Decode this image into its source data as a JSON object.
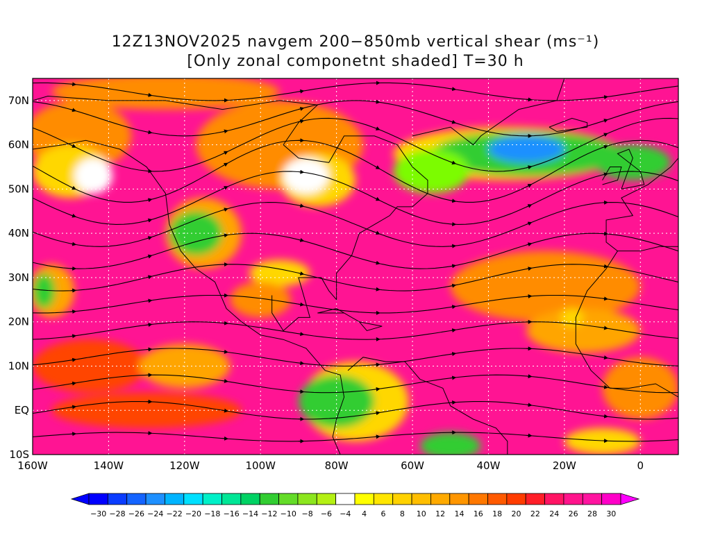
{
  "title": {
    "line1": "12Z13NOV2025 navgem 200−850mb vertical shear (ms⁻¹)",
    "line2": "[Only zonal componetnt shaded] T=30 h"
  },
  "map": {
    "lon_range": [
      -160,
      10
    ],
    "lat_range": [
      -10,
      75
    ],
    "lat_labels": [
      {
        "lat": 70,
        "text": "70N"
      },
      {
        "lat": 60,
        "text": "60N"
      },
      {
        "lat": 50,
        "text": "50N"
      },
      {
        "lat": 40,
        "text": "40N"
      },
      {
        "lat": 30,
        "text": "30N"
      },
      {
        "lat": 20,
        "text": "20N"
      },
      {
        "lat": 10,
        "text": "10N"
      },
      {
        "lat": 0,
        "text": "EQ"
      },
      {
        "lat": -10,
        "text": "10S"
      }
    ],
    "lon_labels": [
      {
        "lon": -160,
        "text": "160W"
      },
      {
        "lon": -140,
        "text": "140W"
      },
      {
        "lon": -120,
        "text": "120W"
      },
      {
        "lon": -100,
        "text": "100W"
      },
      {
        "lon": -80,
        "text": "80W"
      },
      {
        "lon": -60,
        "text": "60W"
      },
      {
        "lon": -40,
        "text": "40W"
      },
      {
        "lon": -20,
        "text": "20W"
      },
      {
        "lon": 0,
        "text": "0"
      }
    ],
    "grid_style": "dotted white",
    "grid_lats": [
      70,
      60,
      50,
      40,
      30,
      20,
      10,
      0
    ],
    "grid_lons": [
      -140,
      -120,
      -100,
      -80,
      -60,
      -40,
      -20,
      0
    ],
    "base_color": "#ff1493",
    "patches": [
      {
        "lon": -148,
        "lat": 62,
        "rx": 14,
        "ry": 8,
        "color": "#ff8c00"
      },
      {
        "lon": -150,
        "lat": 54,
        "rx": 10,
        "ry": 6,
        "color": "#ffd700"
      },
      {
        "lon": -144,
        "lat": 53,
        "rx": 5,
        "ry": 4,
        "color": "#ffffff"
      },
      {
        "lon": -115,
        "lat": 40,
        "rx": 10,
        "ry": 8,
        "color": "#ffa500"
      },
      {
        "lon": -117,
        "lat": 40,
        "rx": 7,
        "ry": 5,
        "color": "#32cd32"
      },
      {
        "lon": -95,
        "lat": 60,
        "rx": 22,
        "ry": 10,
        "color": "#ff8c00"
      },
      {
        "lon": -85,
        "lat": 52,
        "rx": 10,
        "ry": 6,
        "color": "#ffd700"
      },
      {
        "lon": -88,
        "lat": 53,
        "rx": 6,
        "ry": 4,
        "color": "#ffffff"
      },
      {
        "lon": -125,
        "lat": 72,
        "rx": 30,
        "ry": 4,
        "color": "#ff8c00"
      },
      {
        "lon": -35,
        "lat": 58,
        "rx": 30,
        "ry": 6,
        "color": "#ffd700"
      },
      {
        "lon": -30,
        "lat": 58,
        "rx": 25,
        "ry": 5,
        "color": "#32cd32"
      },
      {
        "lon": -30,
        "lat": 59,
        "rx": 10,
        "ry": 3,
        "color": "#1e90ff"
      },
      {
        "lon": -55,
        "lat": 54,
        "rx": 10,
        "ry": 5,
        "color": "#7cfc00"
      },
      {
        "lon": -2,
        "lat": 56,
        "rx": 10,
        "ry": 4,
        "color": "#32cd32"
      },
      {
        "lon": -75,
        "lat": 2,
        "rx": 14,
        "ry": 9,
        "color": "#ffd700"
      },
      {
        "lon": -80,
        "lat": 2,
        "rx": 10,
        "ry": 6,
        "color": "#32cd32"
      },
      {
        "lon": -50,
        "lat": -8,
        "rx": 8,
        "ry": 3,
        "color": "#32cd32"
      },
      {
        "lon": -25,
        "lat": 28,
        "rx": 25,
        "ry": 8,
        "color": "#ff8c00"
      },
      {
        "lon": -15,
        "lat": 18,
        "rx": 15,
        "ry": 5,
        "color": "#ffa500"
      },
      {
        "lon": -18,
        "lat": 21,
        "rx": 3,
        "ry": 2,
        "color": "#ffd700"
      },
      {
        "lon": -155,
        "lat": 27,
        "rx": 6,
        "ry": 6,
        "color": "#ffa500"
      },
      {
        "lon": -157,
        "lat": 27,
        "rx": 3,
        "ry": 4,
        "color": "#32cd32"
      },
      {
        "lon": -145,
        "lat": 10,
        "rx": 15,
        "ry": 6,
        "color": "#ff4500"
      },
      {
        "lon": -120,
        "lat": 10,
        "rx": 12,
        "ry": 5,
        "color": "#ffa500"
      },
      {
        "lon": -95,
        "lat": 31,
        "rx": 8,
        "ry": 3,
        "color": "#ffd700"
      },
      {
        "lon": -100,
        "lat": 25,
        "rx": 8,
        "ry": 4,
        "color": "#ff8c00"
      },
      {
        "lon": 0,
        "lat": 5,
        "rx": 10,
        "ry": 7,
        "color": "#ff8c00"
      },
      {
        "lon": -10,
        "lat": -7,
        "rx": 10,
        "ry": 3,
        "color": "#ffd700"
      },
      {
        "lon": -130,
        "lat": 0,
        "rx": 25,
        "ry": 4,
        "color": "#ff4500"
      }
    ],
    "streamlines": [
      {
        "lat": 72,
        "amp": 2,
        "phase": 0
      },
      {
        "lat": 66,
        "amp": 4,
        "phase": 30
      },
      {
        "lat": 60,
        "amp": 6,
        "phase": 60
      },
      {
        "lat": 54,
        "amp": 7,
        "phase": 90
      },
      {
        "lat": 48,
        "amp": 6,
        "phase": 100
      },
      {
        "lat": 42,
        "amp": 5,
        "phase": 120
      },
      {
        "lat": 36,
        "amp": 4,
        "phase": 140
      },
      {
        "lat": 30,
        "amp": 3,
        "phase": 160
      },
      {
        "lat": 24,
        "amp": 2,
        "phase": 180
      },
      {
        "lat": 18,
        "amp": 2,
        "phase": 200
      },
      {
        "lat": 12,
        "amp": 2,
        "phase": 220
      },
      {
        "lat": 6,
        "amp": 2,
        "phase": 240
      },
      {
        "lat": 0,
        "amp": 2,
        "phase": 260
      },
      {
        "lat": -6,
        "amp": 1,
        "phase": 280
      }
    ]
  },
  "colorbar": {
    "values": [
      -30,
      -28,
      -26,
      -24,
      -22,
      -20,
      -18,
      -16,
      -14,
      -12,
      -10,
      -8,
      -6,
      -4,
      4,
      6,
      8,
      10,
      12,
      14,
      16,
      18,
      20,
      22,
      24,
      26,
      28,
      30
    ],
    "colors": [
      "#0000ff",
      "#0a3cff",
      "#1464ff",
      "#1e90ff",
      "#00b4ff",
      "#00e0ff",
      "#00f0c8",
      "#00e696",
      "#00d264",
      "#32cd32",
      "#64dc28",
      "#8ce61e",
      "#b4f014",
      "#ffffff",
      "#ffff00",
      "#ffe600",
      "#ffd200",
      "#ffbe00",
      "#ffaa00",
      "#ff9600",
      "#ff7800",
      "#ff5a00",
      "#ff3c00",
      "#ff1e28",
      "#ff1464",
      "#ff148c",
      "#ff14a0",
      "#ff00c8"
    ],
    "end_low_color": "#0000ff",
    "end_high_color": "#ff00ff"
  }
}
